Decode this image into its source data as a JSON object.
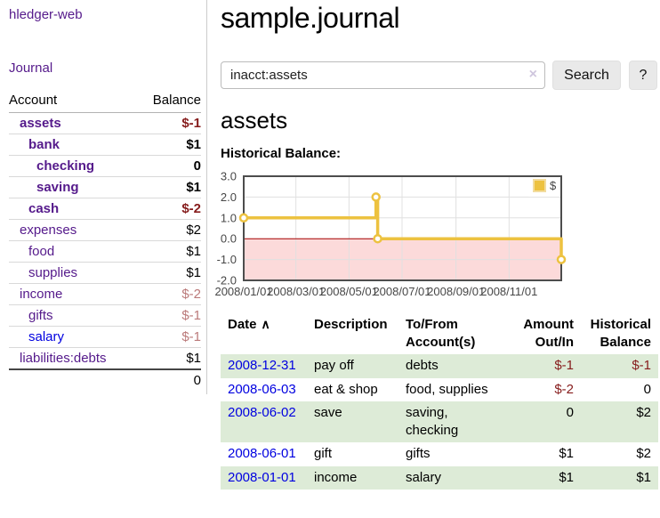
{
  "app": {
    "title": "hledger-web",
    "nav_journal": "Journal"
  },
  "sidebar": {
    "headers": {
      "account": "Account",
      "balance": "Balance"
    },
    "accounts": [
      {
        "name": "assets",
        "level": 1,
        "balance": "$-1",
        "bold": true,
        "neg": "strong",
        "link": "visited"
      },
      {
        "name": "bank",
        "level": 2,
        "balance": "$1",
        "bold": true,
        "neg": null,
        "link": "visited"
      },
      {
        "name": "checking",
        "level": 3,
        "balance": "0",
        "bold": true,
        "neg": null,
        "link": "visited"
      },
      {
        "name": "saving",
        "level": 3,
        "balance": "$1",
        "bold": true,
        "neg": null,
        "link": "visited"
      },
      {
        "name": "cash",
        "level": 2,
        "balance": "$-2",
        "bold": true,
        "neg": "strong",
        "link": "visited"
      },
      {
        "name": "expenses",
        "level": 1,
        "balance": "$2",
        "bold": false,
        "neg": null,
        "link": "visited"
      },
      {
        "name": "food",
        "level": 2,
        "balance": "$1",
        "bold": false,
        "neg": null,
        "link": "visited"
      },
      {
        "name": "supplies",
        "level": 2,
        "balance": "$1",
        "bold": false,
        "neg": null,
        "link": "visited"
      },
      {
        "name": "income",
        "level": 1,
        "balance": "$-2",
        "bold": false,
        "neg": "light",
        "link": "visited"
      },
      {
        "name": "gifts",
        "level": 2,
        "balance": "$-1",
        "bold": false,
        "neg": "light",
        "link": "visited"
      },
      {
        "name": "salary",
        "level": 2,
        "balance": "$-1",
        "bold": false,
        "neg": "light",
        "link": "new"
      },
      {
        "name": "liabilities:debts",
        "level": 1,
        "balance": "$1",
        "bold": false,
        "neg": null,
        "link": "visited"
      }
    ],
    "total": "0"
  },
  "main": {
    "title": "sample.journal",
    "search": {
      "value": "inacct:assets",
      "clear_icon": "×",
      "button": "Search",
      "help": "?"
    },
    "account_heading": "assets",
    "chart_label": "Historical Balance:"
  },
  "chart_data": {
    "type": "line",
    "title": "Historical Balance:",
    "step": true,
    "series": [
      {
        "name": "$",
        "color": "#edc240",
        "points": [
          [
            "2008/01/01",
            1
          ],
          [
            "2008/06/01",
            2
          ],
          [
            "2008/06/03",
            0
          ],
          [
            "2008/12/31",
            -1
          ]
        ]
      }
    ],
    "x_ticks": [
      "2008/01/01",
      "2008/03/01",
      "2008/05/01",
      "2008/07/01",
      "2008/09/01",
      "2008/11/01"
    ],
    "y_ticks": [
      3.0,
      2.0,
      1.0,
      0.0,
      -1.0,
      -2.0
    ],
    "xlim": [
      "2008/01/01",
      "2008/12/31"
    ],
    "ylim": [
      -2,
      3
    ],
    "grid": true,
    "legend_position": "top-right",
    "negative_fill": "#fcdada",
    "zero_line_color": "#a40000"
  },
  "register": {
    "headers": {
      "date": "Date",
      "description": "Description",
      "accounts": "To/From Account(s)",
      "amount": "Amount Out/In",
      "balance": "Historical Balance"
    },
    "sort_icon_glyph": "∧",
    "rows": [
      {
        "date": "2008-12-31",
        "description": "pay off",
        "accounts": "debts",
        "amount": "$-1",
        "amount_neg": true,
        "balance": "$-1",
        "balance_neg": true
      },
      {
        "date": "2008-06-03",
        "description": "eat & shop",
        "accounts": "food, supplies",
        "amount": "$-2",
        "amount_neg": true,
        "balance": "0",
        "balance_neg": false
      },
      {
        "date": "2008-06-02",
        "description": "save",
        "accounts": "saving, checking",
        "amount": "0",
        "amount_neg": false,
        "balance": "$2",
        "balance_neg": false
      },
      {
        "date": "2008-06-01",
        "description": "gift",
        "accounts": "gifts",
        "amount": "$1",
        "amount_neg": false,
        "balance": "$2",
        "balance_neg": false
      },
      {
        "date": "2008-01-01",
        "description": "income",
        "accounts": "salary",
        "amount": "$1",
        "amount_neg": false,
        "balance": "$1",
        "balance_neg": false
      }
    ]
  }
}
